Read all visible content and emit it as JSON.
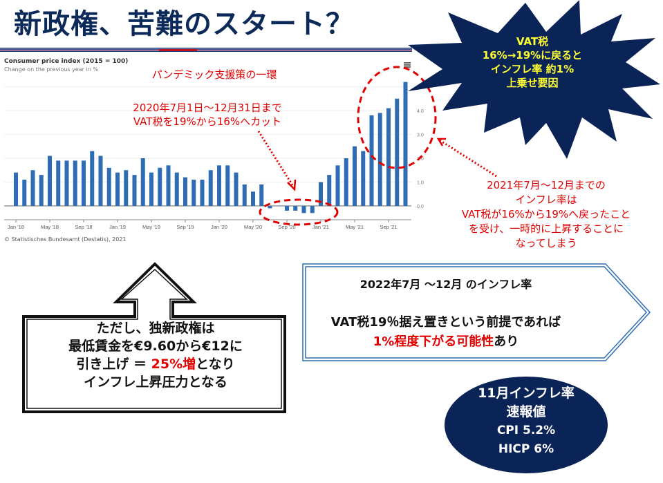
{
  "slide": {
    "title": "新政権、苦難のスタート？"
  },
  "chart_header": {
    "title": "Consumer price index (2015 = 100)",
    "subtitle": "Change on the previous year in %",
    "source": "© Statistisches Bundesamt (Destatis), 2021"
  },
  "chart_data": {
    "type": "bar",
    "title": "Consumer price index (2015 = 100)",
    "subtitle": "Change on the previous year in %",
    "xlabel": "",
    "ylabel": "Change on the previous year in %",
    "ylim": [
      -0.5,
      5.5
    ],
    "yticks": [
      "0.0",
      "1.0",
      "2.0",
      "3.0",
      "4.0",
      "5.0"
    ],
    "grid": true,
    "legend": "none",
    "bar_color": "#2e6db4",
    "x_tick_labels": [
      "Jan '18",
      "May '18",
      "Sep '18",
      "Jan '19",
      "May '19",
      "Sep '19",
      "Jan '20",
      "May '20",
      "Sep '20",
      "Jan '21",
      "May '21",
      "Sep '21"
    ],
    "categories": [
      "2018-01",
      "2018-02",
      "2018-03",
      "2018-04",
      "2018-05",
      "2018-06",
      "2018-07",
      "2018-08",
      "2018-09",
      "2018-10",
      "2018-11",
      "2018-12",
      "2019-01",
      "2019-02",
      "2019-03",
      "2019-04",
      "2019-05",
      "2019-06",
      "2019-07",
      "2019-08",
      "2019-09",
      "2019-10",
      "2019-11",
      "2019-12",
      "2020-01",
      "2020-02",
      "2020-03",
      "2020-04",
      "2020-05",
      "2020-06",
      "2020-07",
      "2020-08",
      "2020-09",
      "2020-10",
      "2020-11",
      "2020-12",
      "2021-01",
      "2021-02",
      "2021-03",
      "2021-04",
      "2021-05",
      "2021-06",
      "2021-07",
      "2021-08",
      "2021-09",
      "2021-10",
      "2021-11"
    ],
    "values": [
      1.4,
      1.1,
      1.5,
      1.3,
      2.1,
      1.9,
      1.9,
      1.9,
      1.9,
      2.3,
      2.1,
      1.6,
      1.4,
      1.5,
      1.3,
      2.0,
      1.4,
      1.6,
      1.7,
      1.4,
      1.2,
      1.1,
      1.1,
      1.5,
      1.7,
      1.7,
      1.4,
      0.9,
      0.6,
      0.9,
      -0.1,
      0.0,
      -0.2,
      -0.2,
      -0.3,
      -0.3,
      1.0,
      1.3,
      1.7,
      2.0,
      2.5,
      2.3,
      3.8,
      3.9,
      4.1,
      4.5,
      5.2
    ],
    "annotations": [
      "パンデミック支援策の一環",
      "2020年7月1日〜12月31日まで VAT税を19%から16%へカット",
      "2021年7月〜12月までのインフレ率は VAT税が16%から19%へ戻ったことを受け、一時的に上昇することになってしまう"
    ]
  },
  "notes": {
    "pandemic": "パンデミック支援策の一環",
    "cut_line1": "2020年7月1日～12月31日まで",
    "cut_line2": "VAT税を19%から16%へカット",
    "rise_line1": "2021年7月～12月までの",
    "rise_line2": "インフレ率は",
    "rise_line3": "VAT税が16%から19%へ戻ったこと",
    "rise_line4": "を受け、一時的に上昇することに",
    "rise_line5": "なってしまう"
  },
  "starburst": {
    "line1": "VAT税",
    "line2": "16%→19%に戻ると",
    "line3": "インフレ率  約1%",
    "line4": "上乗せ要因",
    "fill": "#0b2457",
    "text_color": "#ffff33"
  },
  "up_arrow_box": {
    "line1": "ただし、独新政権は",
    "line2": "最低賃金を€9.60から€12に",
    "line3_pre": "引き上げ  ＝  ",
    "line3_hl": "25%増",
    "line3_post": "となり",
    "line4": "インフレ上昇圧力となる"
  },
  "pentagon_box": {
    "line1": "2022年7月 ～12月 のインフレ率",
    "line2": "VAT税19％据え置きという前提であれば",
    "line3_hl": "1%程度下がる可能性",
    "line3_post": "あり"
  },
  "ellipse": {
    "line1": "11月インフレ率",
    "line2": "速報値",
    "line3": "CPI   5.2%",
    "line4": "HICP   6%"
  }
}
